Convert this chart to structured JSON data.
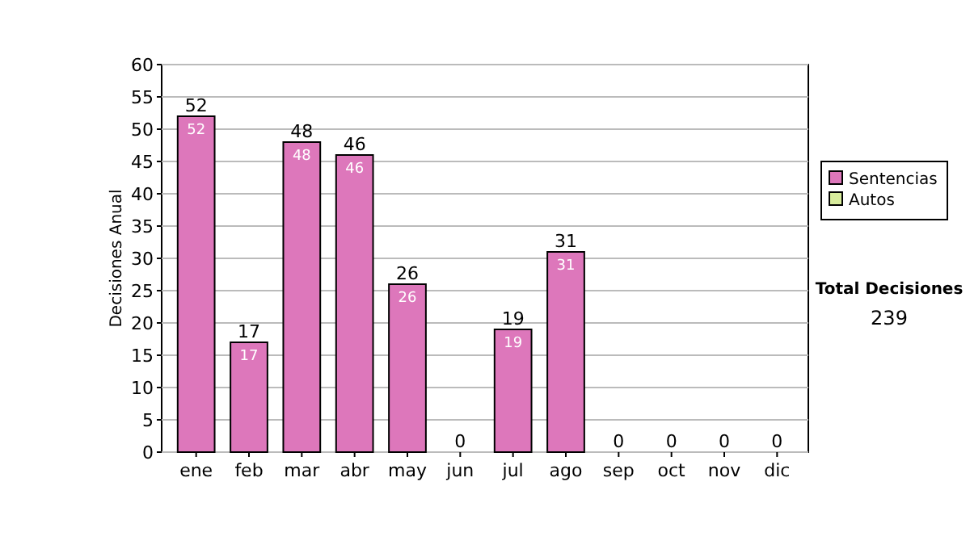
{
  "chart_data": {
    "type": "bar",
    "stacked": true,
    "ylabel": "Decisiones Anual",
    "categories": [
      "ene",
      "feb",
      "mar",
      "abr",
      "may",
      "jun",
      "jul",
      "ago",
      "sep",
      "oct",
      "nov",
      "dic"
    ],
    "series": [
      {
        "name": "Sentencias",
        "color": "#dd77bb",
        "values": [
          52,
          17,
          48,
          46,
          26,
          0,
          19,
          31,
          0,
          0,
          0,
          0
        ],
        "value_labels": [
          "52",
          "17",
          "48",
          "46",
          "26",
          null,
          "19",
          "31",
          null,
          null,
          null,
          null
        ]
      },
      {
        "name": "Autos",
        "color": "#d8ec9c",
        "values": [
          0,
          0,
          0,
          0,
          0,
          0,
          0,
          0,
          0,
          0,
          0,
          0
        ]
      }
    ],
    "totals": [
      "52",
      "17",
      "48",
      "46",
      "26",
      "0",
      "19",
      "31",
      "0",
      "0",
      "0",
      "0"
    ],
    "ylim": [
      0,
      60
    ],
    "yticks": [
      0,
      5,
      10,
      15,
      20,
      25,
      30,
      35,
      40,
      45,
      50,
      55,
      60
    ],
    "grid": "y",
    "legend": "right",
    "annotations": [
      "Total Decisiones",
      "239"
    ]
  }
}
